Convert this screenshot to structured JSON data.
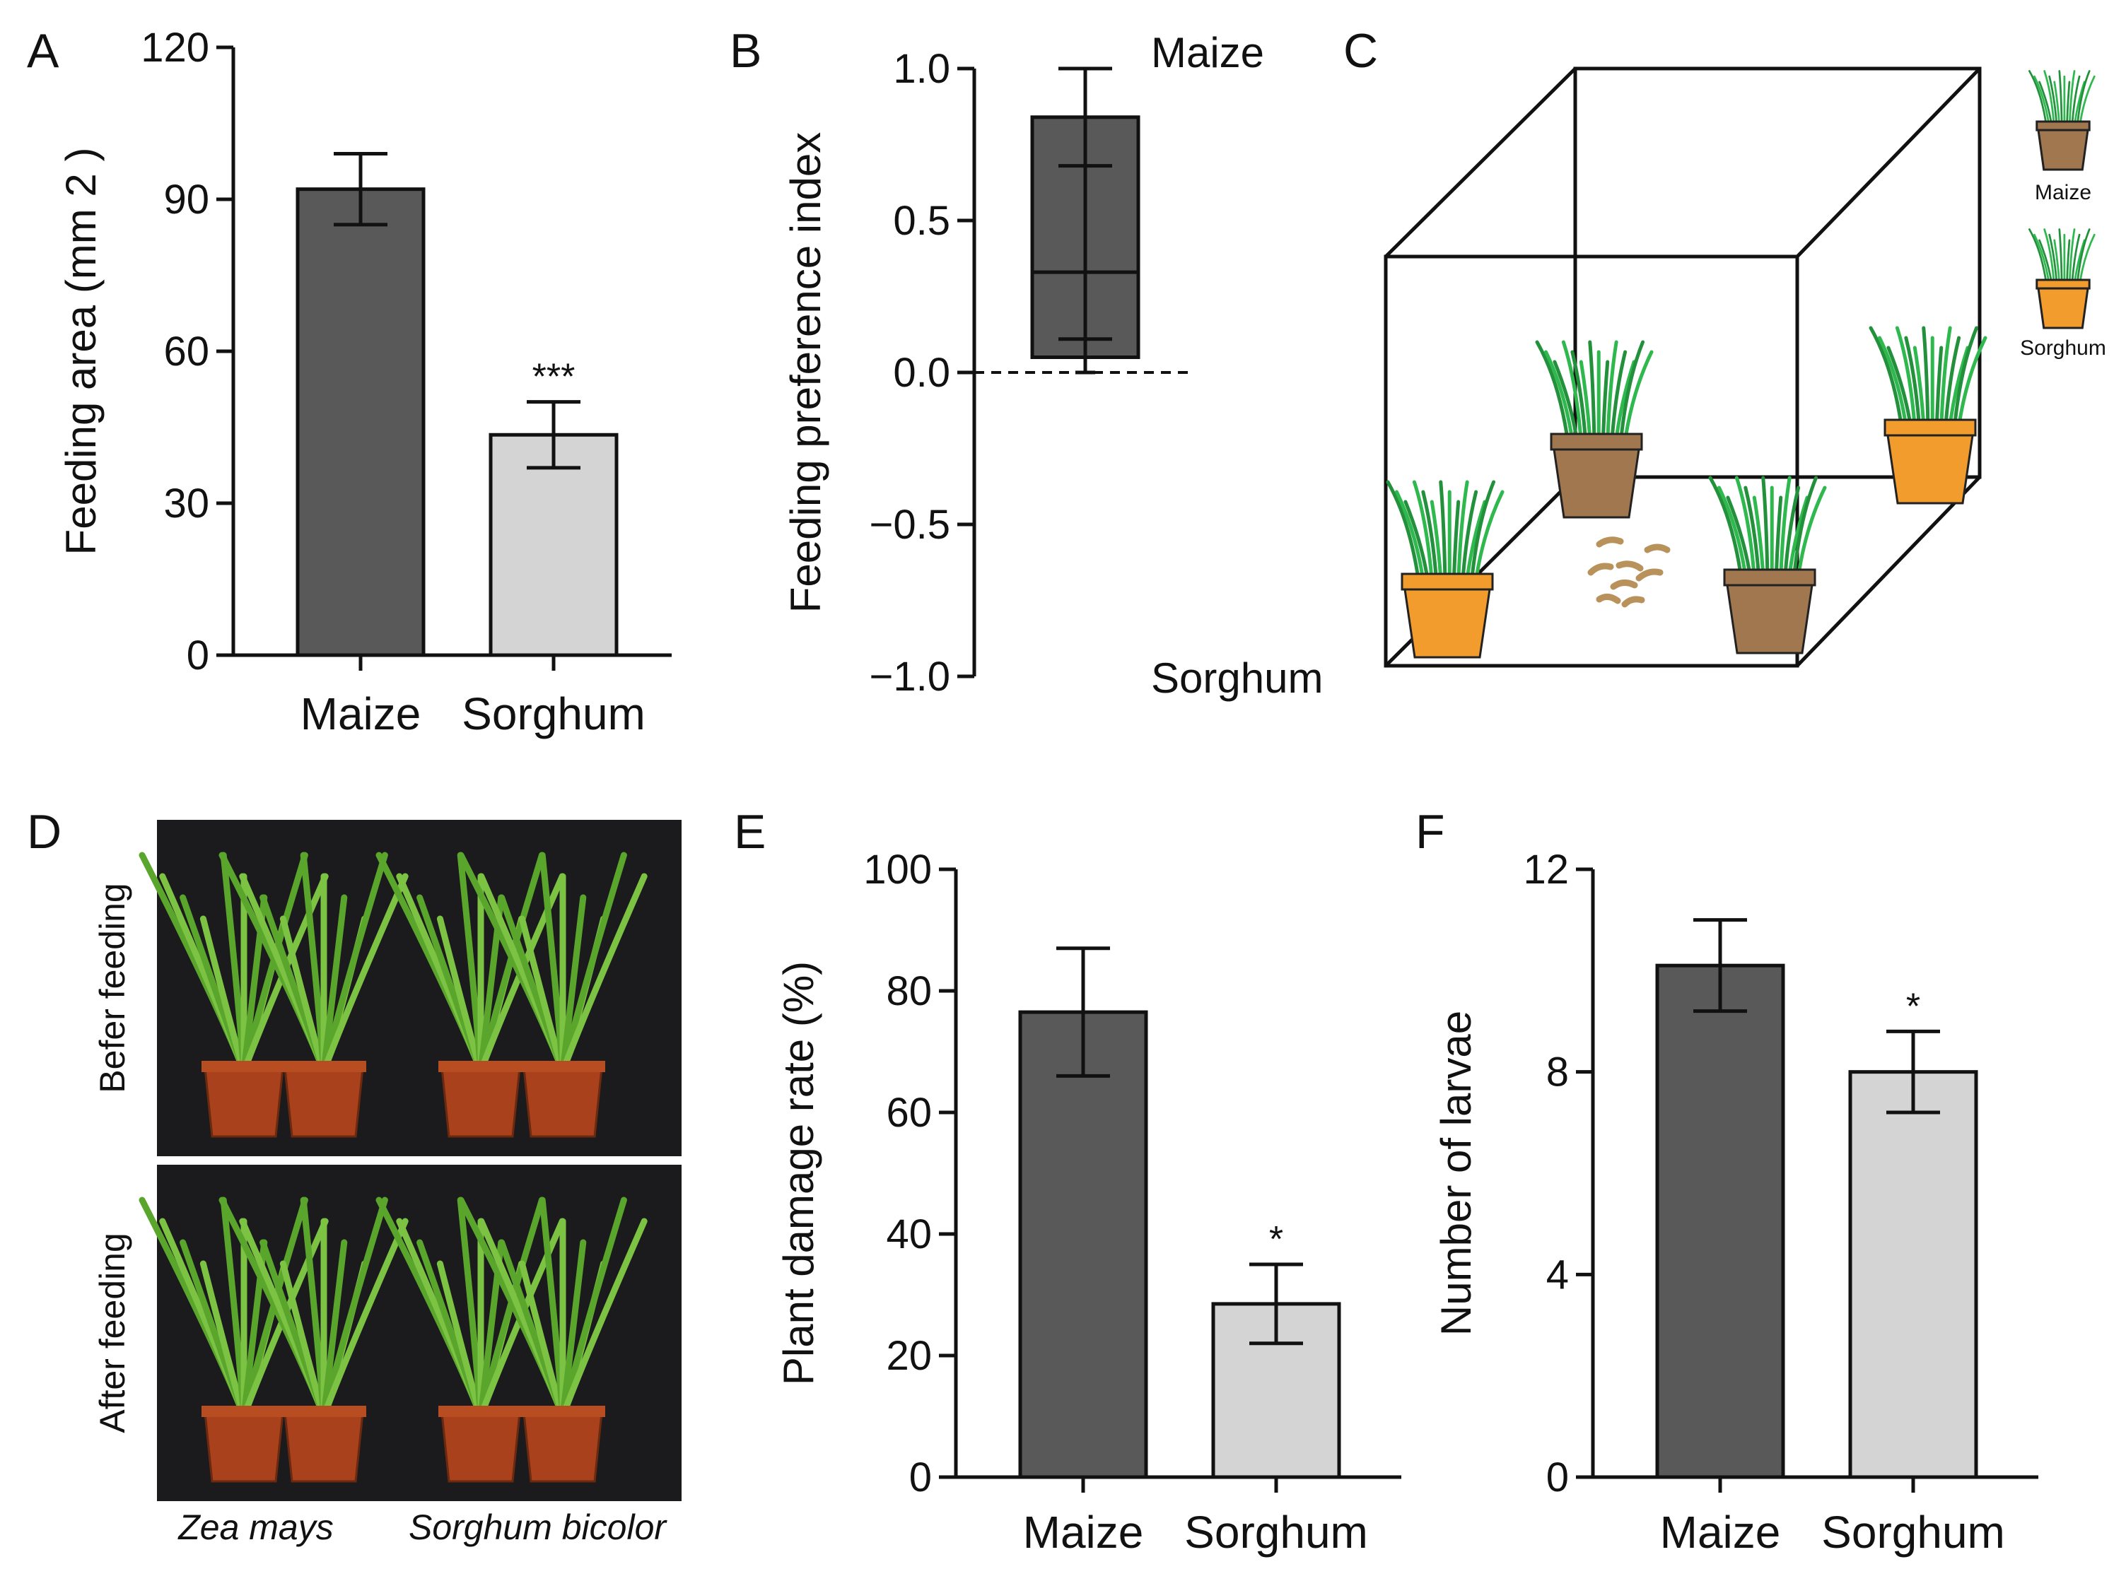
{
  "panels": {
    "A": {
      "letter": "A"
    },
    "B": {
      "letter": "B"
    },
    "C": {
      "letter": "C",
      "legend": [
        "Maize",
        "Sorghum"
      ]
    },
    "D": {
      "letter": "D",
      "rows": [
        "Befer feeding",
        "After feeding"
      ],
      "species": [
        "Zea mays",
        "Sorghum bicolor"
      ]
    },
    "E": {
      "letter": "E"
    },
    "F": {
      "letter": "F"
    }
  },
  "colors": {
    "maize": "#595959",
    "sorghum": "#d4d4d4",
    "pot_brown": "#a0774e",
    "pot_orange": "#f39c2e",
    "leaf": "#2eb84e"
  },
  "chart_data": [
    {
      "id": "A",
      "type": "bar",
      "title": "",
      "categories": [
        "Maize",
        "Sorghum"
      ],
      "values": [
        92,
        43.5
      ],
      "errors": [
        7,
        6.5
      ],
      "significance": [
        "",
        "***"
      ],
      "ylabel": "Feeding area (mm 2 )",
      "ylim": [
        0,
        120
      ],
      "yticks": [
        "0",
        "30",
        "60",
        "90",
        "120"
      ]
    },
    {
      "id": "B",
      "type": "box",
      "title": "",
      "ylabel": "Feeding preference index",
      "ylim": [
        -1.0,
        1.0
      ],
      "yticks": [
        "−1.0",
        "−0.5",
        "0.0",
        "0.5",
        "1.0"
      ],
      "box": {
        "min": 0.0,
        "q1": 0.05,
        "median": 0.33,
        "q3": 0.84,
        "max": 1.0,
        "inner_whisker_low": 0.11,
        "inner_whisker_high": 0.68
      },
      "annotations": {
        "top": "Maize",
        "bottom": "Sorghum"
      },
      "reference_line": 0.0
    },
    {
      "id": "E",
      "type": "bar",
      "title": "",
      "categories": [
        "Maize",
        "Sorghum"
      ],
      "values": [
        76.5,
        28.5
      ],
      "errors": [
        10.5,
        6.5
      ],
      "significance": [
        "",
        "*"
      ],
      "ylabel": "Plant damage rate (%)",
      "ylim": [
        0,
        100
      ],
      "yticks": [
        "0",
        "20",
        "40",
        "60",
        "80",
        "100"
      ]
    },
    {
      "id": "F",
      "type": "bar",
      "title": "",
      "categories": [
        "Maize",
        "Sorghum"
      ],
      "values": [
        10.1,
        8.0
      ],
      "errors": [
        0.9,
        0.8
      ],
      "significance": [
        "",
        "*"
      ],
      "ylabel": "Number of larvae",
      "ylim": [
        0,
        12
      ],
      "yticks": [
        "0",
        "4",
        "8",
        "12"
      ]
    }
  ]
}
